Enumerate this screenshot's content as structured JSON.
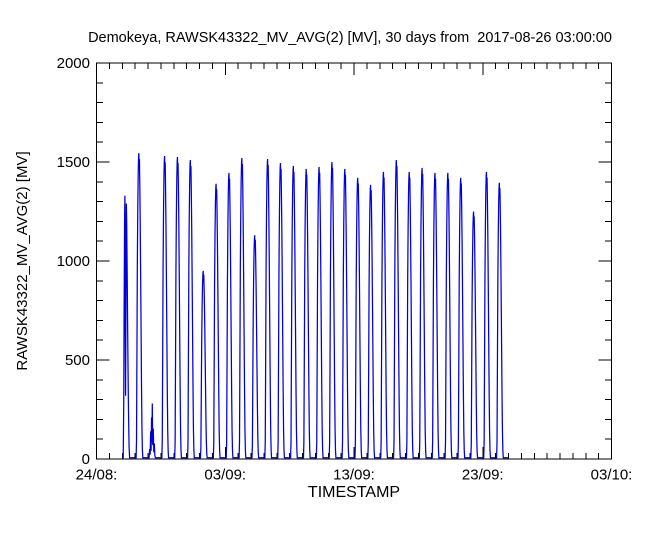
{
  "window": {
    "background_color": "#ffffff",
    "text_color": "#000000"
  },
  "chart_data": {
    "type": "line",
    "title": "Demokeya, RAWSK43322_MV_AVG(2) [MV], 30 days from  2017-08-26 03:00:00",
    "xlabel": "TIMESTAMP",
    "ylabel": "RAWSK43322_MV_AVG(2) [MV]",
    "grid": false,
    "legend": "none",
    "line_color": "#0000dd",
    "axis_color": "#000000",
    "x_axis": {
      "span_days": 40,
      "start_label": "24/08:",
      "tick_labels": [
        "24/08:",
        "03/09:",
        "13/09:",
        "23/09:",
        "03/10:"
      ],
      "major_tick_positions_days": [
        0,
        10,
        20,
        30,
        40
      ],
      "minor_tick_interval_days": 1
    },
    "y_axis": {
      "min": 0,
      "max": 2000,
      "tick_values": [
        0,
        500,
        1000,
        1500,
        2000
      ],
      "tick_labels": [
        "0",
        "500",
        "1000",
        "1500",
        "2000"
      ],
      "minor_tick_interval": 100
    },
    "series": {
      "name": "RAWSK43322_MV_AVG(2) [MV]",
      "start": "2017-08-26 03:00:00",
      "days": 30,
      "start_offset_days": 2,
      "end_offset_days": 32,
      "baseline_value": 6,
      "daily_peaks": [
        {
          "date": "26/08",
          "peak": 1330,
          "shape": "double"
        },
        {
          "date": "27/08",
          "peak": 1545,
          "shape": "normal"
        },
        {
          "date": "28/08",
          "peak": 280,
          "shape": "irregular"
        },
        {
          "date": "29/08",
          "peak": 1530,
          "shape": "normal"
        },
        {
          "date": "30/08",
          "peak": 1525,
          "shape": "normal"
        },
        {
          "date": "31/08",
          "peak": 1510,
          "shape": "normal"
        },
        {
          "date": "01/09",
          "peak": 950,
          "shape": "normal"
        },
        {
          "date": "02/09",
          "peak": 1390,
          "shape": "normal"
        },
        {
          "date": "03/09",
          "peak": 1445,
          "shape": "normal"
        },
        {
          "date": "04/09",
          "peak": 1520,
          "shape": "normal"
        },
        {
          "date": "05/09",
          "peak": 1130,
          "shape": "normal"
        },
        {
          "date": "06/09",
          "peak": 1515,
          "shape": "normal"
        },
        {
          "date": "07/09",
          "peak": 1495,
          "shape": "normal"
        },
        {
          "date": "08/09",
          "peak": 1480,
          "shape": "normal"
        },
        {
          "date": "09/09",
          "peak": 1465,
          "shape": "normal"
        },
        {
          "date": "10/09",
          "peak": 1475,
          "shape": "normal"
        },
        {
          "date": "11/09",
          "peak": 1500,
          "shape": "normal"
        },
        {
          "date": "12/09",
          "peak": 1465,
          "shape": "normal"
        },
        {
          "date": "13/09",
          "peak": 1420,
          "shape": "normal"
        },
        {
          "date": "14/09",
          "peak": 1385,
          "shape": "normal"
        },
        {
          "date": "15/09",
          "peak": 1450,
          "shape": "normal"
        },
        {
          "date": "16/09",
          "peak": 1510,
          "shape": "normal"
        },
        {
          "date": "17/09",
          "peak": 1450,
          "shape": "normal"
        },
        {
          "date": "18/09",
          "peak": 1470,
          "shape": "normal"
        },
        {
          "date": "19/09",
          "peak": 1445,
          "shape": "normal"
        },
        {
          "date": "20/09",
          "peak": 1445,
          "shape": "normal"
        },
        {
          "date": "21/09",
          "peak": 1420,
          "shape": "normal"
        },
        {
          "date": "22/09",
          "peak": 1250,
          "shape": "normal"
        },
        {
          "date": "23/09",
          "peak": 1450,
          "shape": "normal"
        },
        {
          "date": "24/09",
          "peak": 1395,
          "shape": "normal"
        }
      ]
    }
  }
}
